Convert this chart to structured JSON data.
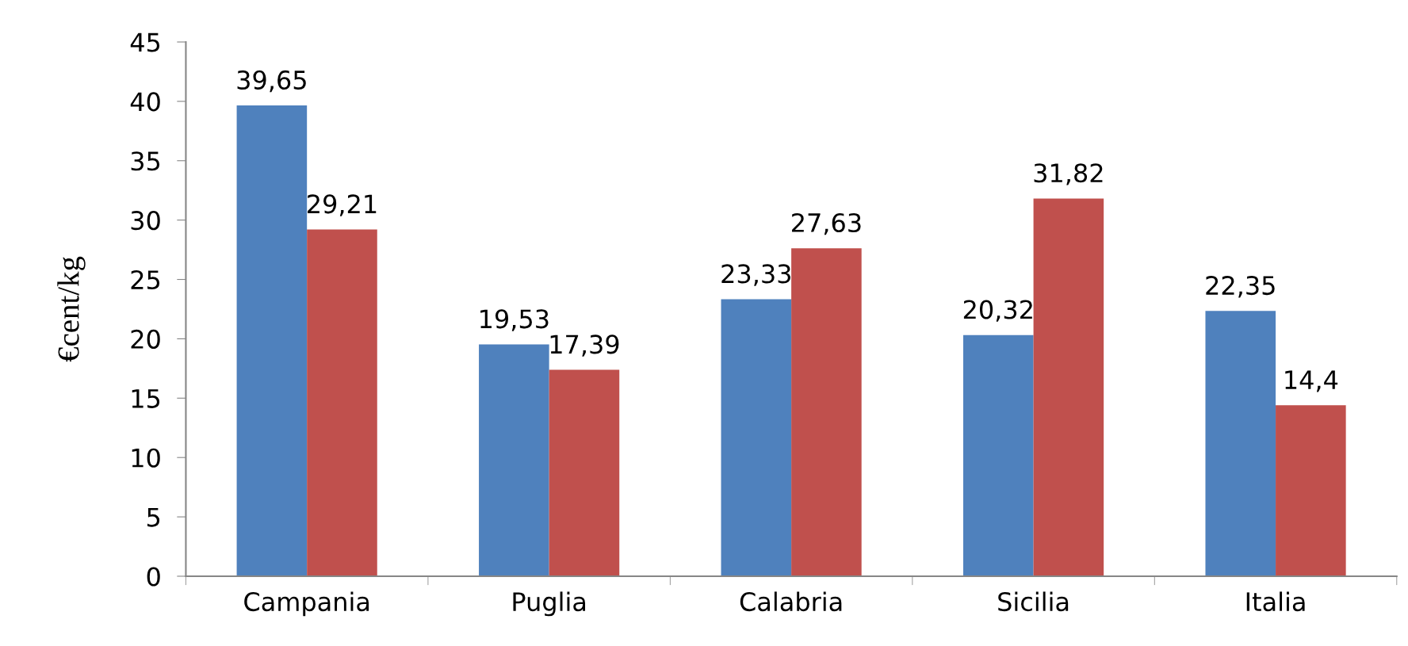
{
  "chart_data": {
    "type": "bar",
    "ylabel": "€cent/kg",
    "categories": [
      "Campania",
      "Puglia",
      "Calabria",
      "Sicilia",
      "Italia"
    ],
    "series": [
      {
        "color": "#4f81bd",
        "values": [
          39.65,
          19.53,
          23.33,
          20.32,
          22.35
        ],
        "value_labels": [
          "39,65",
          "19,53",
          "23,33",
          "20,32",
          "22,35"
        ]
      },
      {
        "color": "#c0504d",
        "values": [
          29.21,
          17.39,
          27.63,
          31.82,
          14.4
        ],
        "value_labels": [
          "29,21",
          "17,39",
          "27,63",
          "31,82",
          "14,4"
        ]
      }
    ],
    "ylim": [
      0,
      45
    ],
    "yticks": [
      0,
      5,
      10,
      15,
      20,
      25,
      30,
      35,
      40,
      45
    ],
    "grid": false
  }
}
